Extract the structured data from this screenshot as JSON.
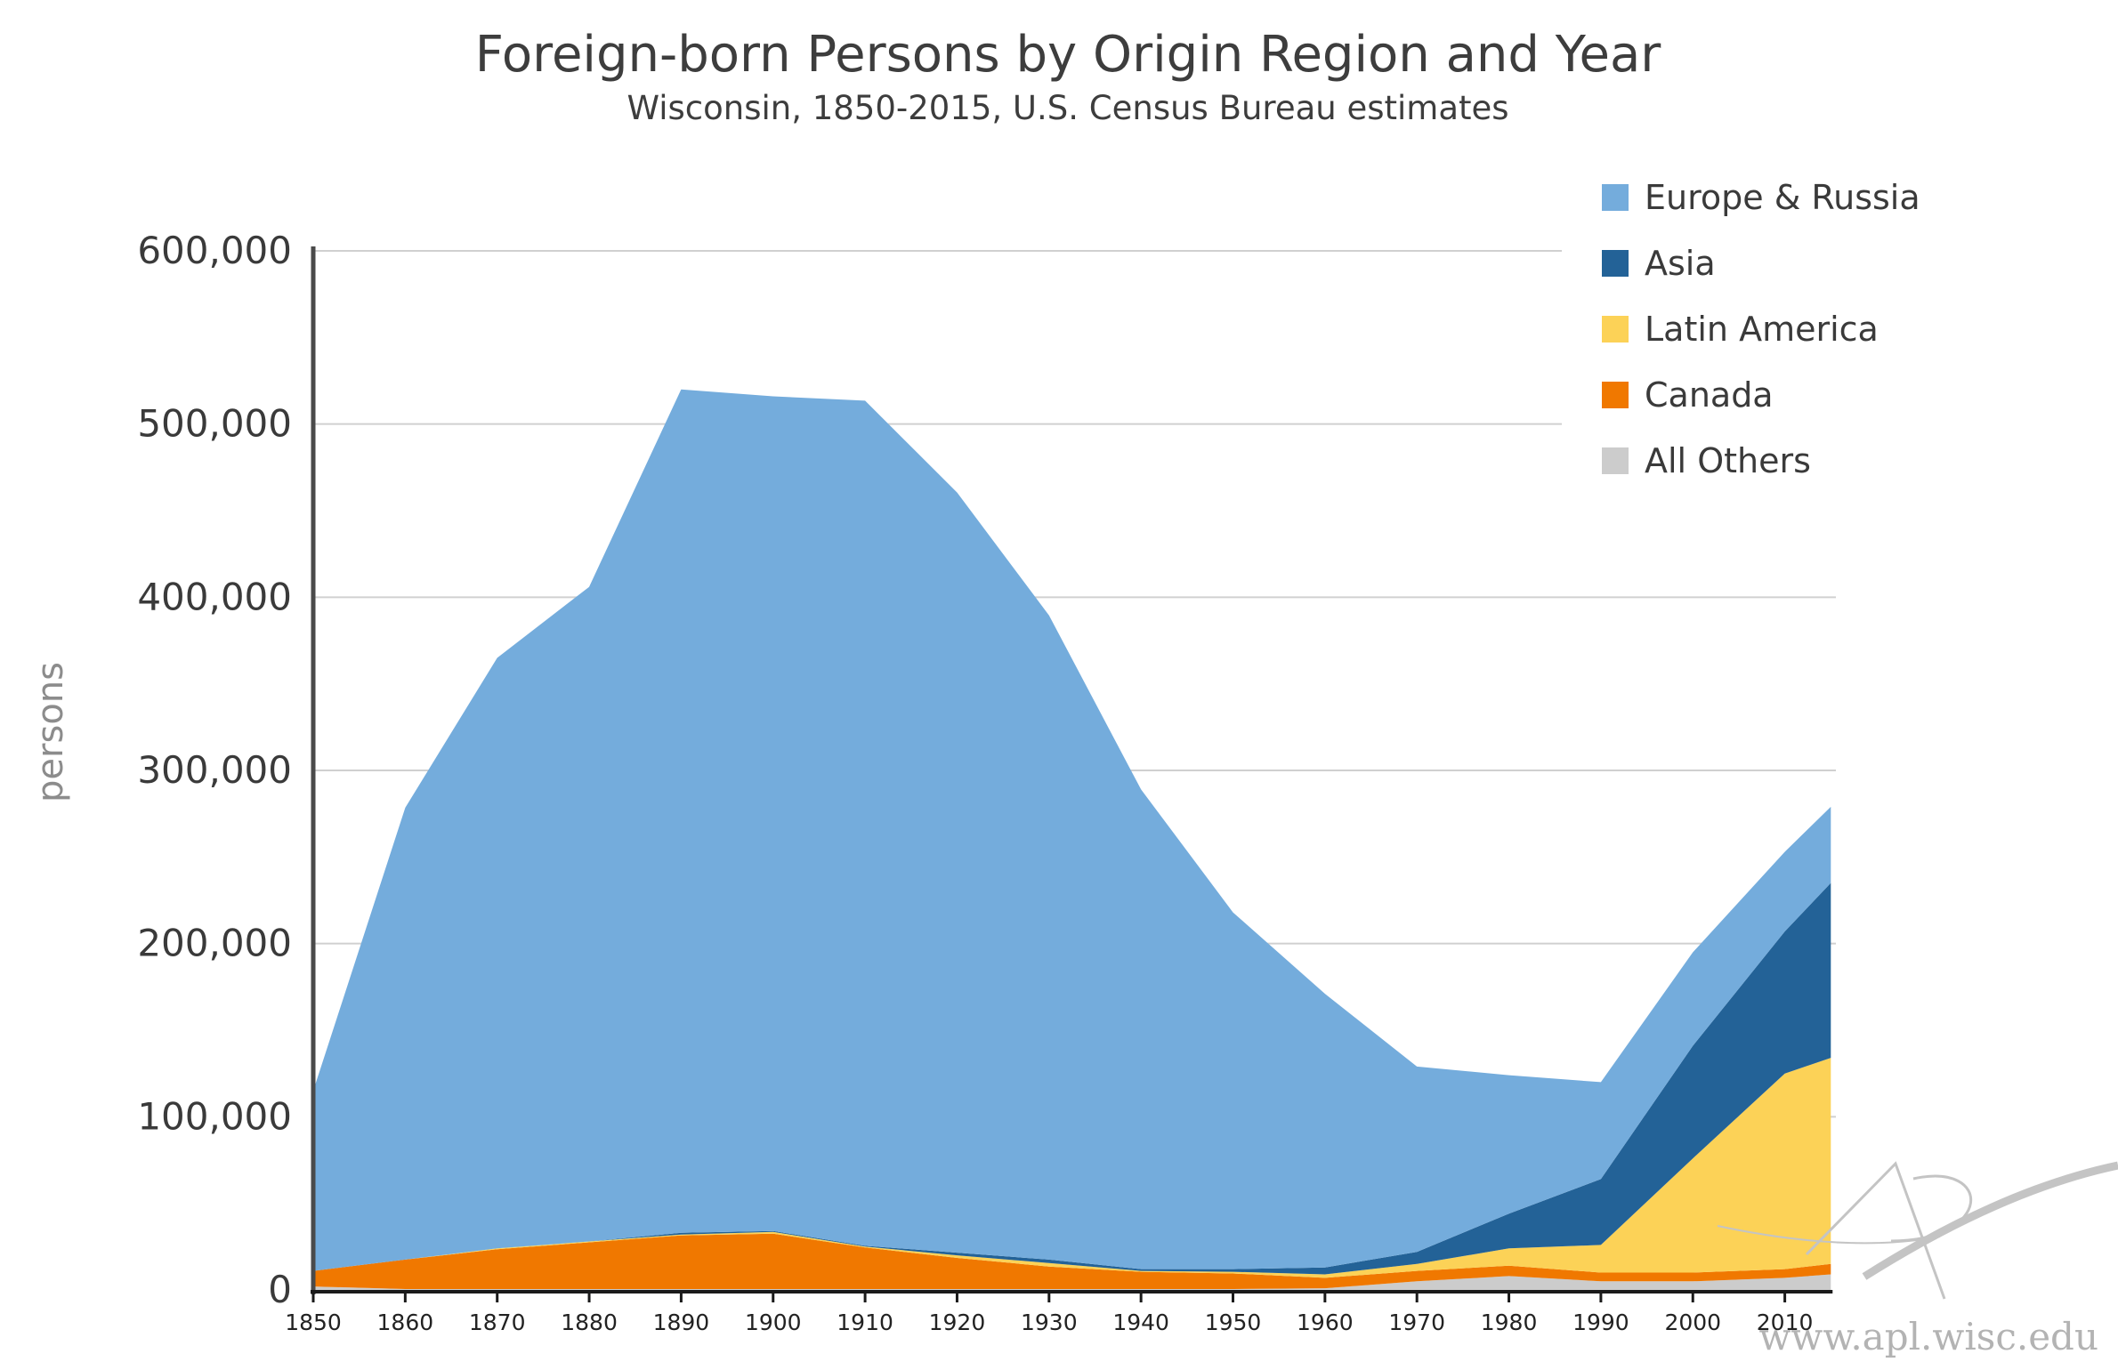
{
  "chart_data": {
    "type": "area",
    "stacked": true,
    "title": "Foreign-born Persons by Origin Region and Year",
    "subtitle": "Wisconsin, 1850-2015, U.S. Census Bureau estimates",
    "ylabel": "persons",
    "xlabel": "",
    "ylim": [
      0,
      600000
    ],
    "yticks": [
      0,
      100000,
      200000,
      300000,
      400000,
      500000,
      600000
    ],
    "ytick_labels": [
      "0",
      "100,000",
      "200,000",
      "300,000",
      "400,000",
      "500,000",
      "600,000"
    ],
    "xticks": [
      1850,
      1860,
      1870,
      1880,
      1890,
      1900,
      1910,
      1920,
      1930,
      1940,
      1950,
      1960,
      1970,
      1980,
      1990,
      2000,
      2010
    ],
    "xtick_labels": [
      "1850",
      "1860",
      "1870",
      "1880",
      "1890",
      "1900",
      "1910",
      "1920",
      "1930",
      "1940",
      "1950",
      "1960",
      "1970",
      "1980",
      "1990",
      "2000",
      "2010"
    ],
    "x": [
      1850,
      1860,
      1870,
      1880,
      1890,
      1900,
      1910,
      1920,
      1930,
      1940,
      1950,
      1960,
      1970,
      1980,
      1990,
      2000,
      2010,
      2015
    ],
    "grid": "horizontal",
    "legend_position": "top-right",
    "series": [
      {
        "name": "All Others",
        "color": "#cccccc",
        "values": [
          2000,
          500,
          500,
          500,
          500,
          500,
          500,
          500,
          500,
          500,
          500,
          1000,
          5000,
          8000,
          5000,
          5000,
          7000,
          9000
        ]
      },
      {
        "name": "Canada",
        "color": "#f07800",
        "values": [
          9000,
          17000,
          23000,
          27000,
          31000,
          32000,
          24000,
          18000,
          13000,
          10000,
          9000,
          6000,
          6000,
          6000,
          5000,
          5000,
          5000,
          6000
        ]
      },
      {
        "name": "Latin America",
        "color": "#fcd257",
        "values": [
          0,
          0,
          500,
          500,
          500,
          1000,
          500,
          1500,
          2000,
          500,
          1000,
          2000,
          4000,
          10000,
          16000,
          66000,
          113000,
          119000
        ]
      },
      {
        "name": "Asia",
        "color": "#236297",
        "values": [
          0,
          0,
          0,
          0,
          1000,
          500,
          500,
          1500,
          2000,
          1000,
          1500,
          4000,
          7000,
          20000,
          38000,
          65000,
          82000,
          101000
        ]
      },
      {
        "name": "Europe & Russia",
        "color": "#74acdc",
        "values": [
          104000,
          261000,
          341000,
          378000,
          487000,
          482000,
          488000,
          439000,
          372000,
          277000,
          206000,
          158000,
          107000,
          80000,
          56000,
          54000,
          46000,
          44000
        ]
      }
    ],
    "legend": [
      {
        "name": "Europe & Russia",
        "color": "#74acdc"
      },
      {
        "name": "Asia",
        "color": "#236297"
      },
      {
        "name": "Latin America",
        "color": "#fcd257"
      },
      {
        "name": "Canada",
        "color": "#f07800"
      },
      {
        "name": "All Others",
        "color": "#cccccc"
      }
    ]
  },
  "watermark": {
    "text": "www.apl.wisc.edu"
  }
}
